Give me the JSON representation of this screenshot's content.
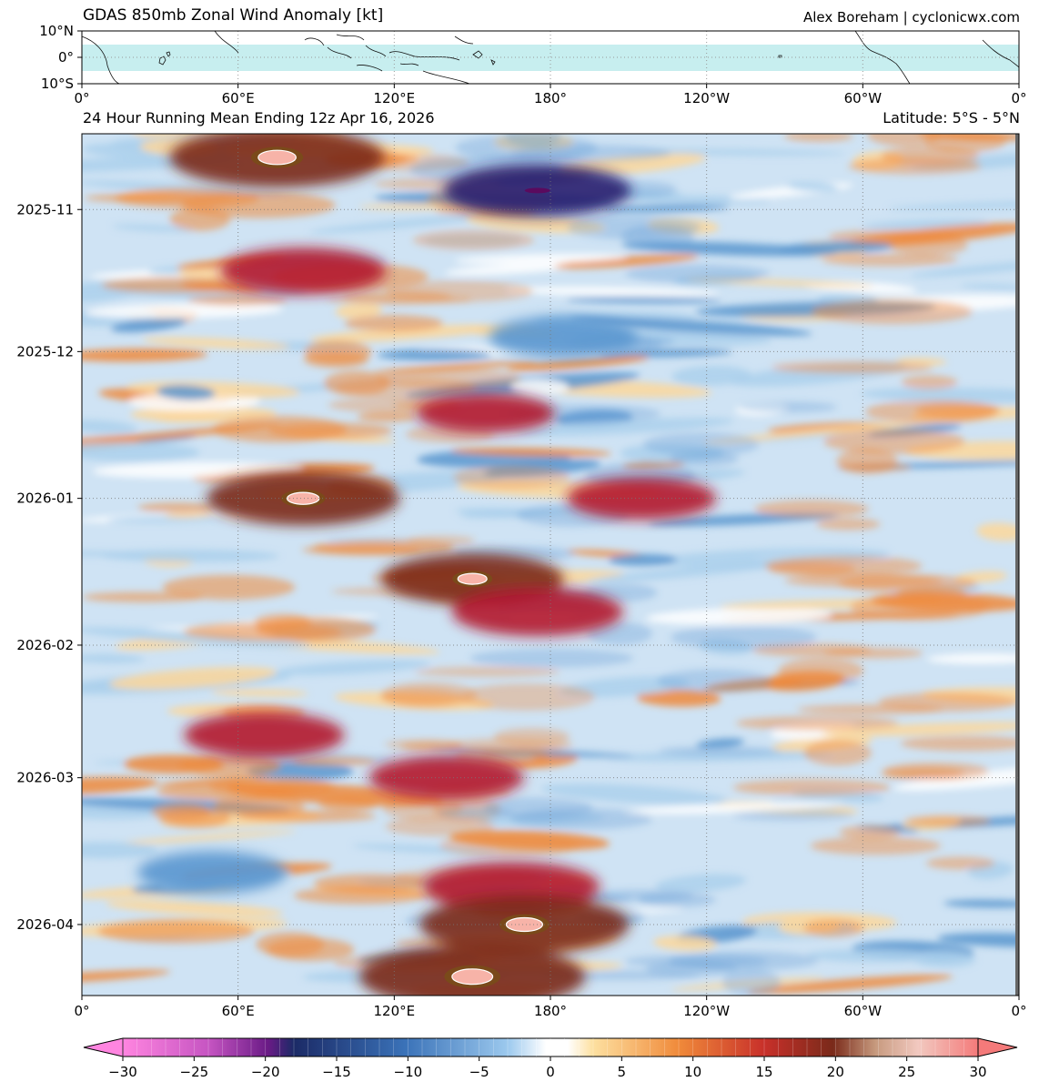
{
  "title": "GDAS 850mb Zonal Wind Anomaly [kt]",
  "credit": "Alex Boreham | cyclonicwx.com",
  "subtitle_left": "24 Hour Running Mean Ending 12z Apr 16, 2026",
  "subtitle_right": "Latitude: 5°S - 5°N",
  "colors": {
    "positive_strong": "#b2182b",
    "positive": "#ef8a3c",
    "positive_weak": "#fdd79b",
    "negative_weak": "#abd0ec",
    "negative": "#5a96cf",
    "negative_strong": "#1f3f8a",
    "band_highlight": "#c7eeef"
  },
  "chart_data": [
    {
      "type": "map",
      "role": "locator-map",
      "x_ticks": [
        "0°",
        "60°E",
        "120°E",
        "180°",
        "120°W",
        "60°W",
        "0°"
      ],
      "y_ticks": [
        "10°N",
        "0°",
        "10°S"
      ],
      "lon_range": [
        0,
        360
      ],
      "lat_range": [
        -10,
        10
      ],
      "highlight_band_lat": [
        -5,
        5
      ],
      "grid": true
    },
    {
      "type": "heatmap",
      "role": "hovmoller",
      "x_ticks": [
        "0°",
        "60°E",
        "120°E",
        "180°",
        "120°W",
        "60°W",
        "0°"
      ],
      "x_range": [
        0,
        360
      ],
      "y_ticks": [
        "2025-11",
        "2025-12",
        "2026-01",
        "2026-02",
        "2026-03",
        "2026-04"
      ],
      "y_range": [
        "2025-10-16",
        "2026-04-16"
      ],
      "y_direction": "time increases downward",
      "grid": true,
      "colorbar": {
        "min": -30,
        "max": 30,
        "ticks": [
          "−30",
          "−25",
          "−20",
          "−15",
          "−10",
          "−5",
          "0",
          "5",
          "10",
          "15",
          "20",
          "25",
          "30"
        ],
        "extend": "both"
      },
      "features": [
        {
          "lon": 75,
          "date": "2025-10-21",
          "value": 26
        },
        {
          "lon": 175,
          "date": "2025-10-28",
          "value": -21
        },
        {
          "lon": 85,
          "date": "2025-11-14",
          "value": 17
        },
        {
          "lon": 185,
          "date": "2025-11-28",
          "value": -14
        },
        {
          "lon": 155,
          "date": "2025-12-14",
          "value": 12
        },
        {
          "lon": 85,
          "date": "2026-01-01",
          "value": 22
        },
        {
          "lon": 215,
          "date": "2026-01-01",
          "value": 14
        },
        {
          "lon": 150,
          "date": "2026-01-18",
          "value": 20
        },
        {
          "lon": 175,
          "date": "2026-01-25",
          "value": 18
        },
        {
          "lon": 70,
          "date": "2026-02-20",
          "value": 16
        },
        {
          "lon": 140,
          "date": "2026-03-01",
          "value": 15
        },
        {
          "lon": 50,
          "date": "2026-03-21",
          "value": -14
        },
        {
          "lon": 165,
          "date": "2026-03-24",
          "value": 19
        },
        {
          "lon": 170,
          "date": "2026-04-01",
          "value": 25
        },
        {
          "lon": 150,
          "date": "2026-04-12",
          "value": 28
        }
      ]
    }
  ]
}
